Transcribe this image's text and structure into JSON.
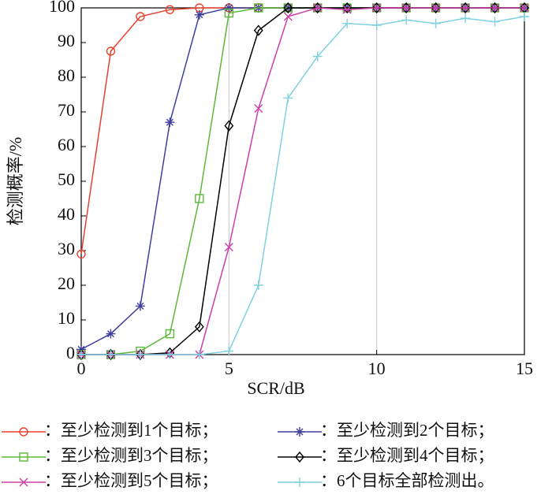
{
  "chart_data": {
    "type": "line",
    "x_label": "SCR/dB",
    "y_label": "检测概率/%",
    "x": [
      0,
      1,
      2,
      3,
      4,
      5,
      6,
      7,
      8,
      9,
      10,
      11,
      12,
      13,
      14,
      15
    ],
    "xlim": [
      0,
      15
    ],
    "xticks": [
      0,
      5,
      10,
      15
    ],
    "ylim": [
      0,
      100
    ],
    "yticks": [
      0,
      10,
      20,
      30,
      40,
      50,
      60,
      70,
      80,
      90,
      100
    ],
    "xgrid": true,
    "series": [
      {
        "name": "：至少检测到1个目标；",
        "color": "#e8412c",
        "marker": "o",
        "values": [
          29,
          87.5,
          97.5,
          99.5,
          100,
          100,
          100,
          100,
          100,
          100,
          100,
          100,
          100,
          100,
          100,
          100
        ]
      },
      {
        "name": "：至少检测到2个目标；",
        "color": "#3f3f9f",
        "marker": "*",
        "values": [
          1.5,
          6,
          14,
          67,
          98,
          100,
          100,
          100,
          100,
          100,
          100,
          100,
          100,
          100,
          100,
          100
        ]
      },
      {
        "name": "：至少检测到3个目标；",
        "color": "#5cb83a",
        "marker": "s",
        "values": [
          0,
          0,
          1,
          6,
          45,
          98.5,
          100,
          100,
          100,
          100,
          100,
          100,
          100,
          100,
          100,
          100
        ]
      },
      {
        "name": "：至少检测到4个目标；",
        "color": "#000000",
        "marker": "d",
        "values": [
          0,
          0,
          0,
          0.5,
          8,
          66,
          93.5,
          100,
          100,
          100,
          100,
          100,
          100,
          100,
          100,
          100
        ]
      },
      {
        "name": "：至少检测到5个目标；",
        "color": "#cc3fa8",
        "marker": "x",
        "values": [
          0,
          0,
          0,
          0,
          0,
          31,
          71,
          97.5,
          100,
          99.5,
          100,
          100,
          100,
          100,
          100,
          100
        ]
      },
      {
        "name": "：6个目标全部检测出。",
        "color": "#7fd0e0",
        "marker": "+",
        "values": [
          0,
          0,
          0,
          0,
          0,
          1,
          20,
          74,
          86,
          95.5,
          95,
          96.5,
          95.5,
          97,
          96,
          97.5
        ]
      }
    ]
  }
}
